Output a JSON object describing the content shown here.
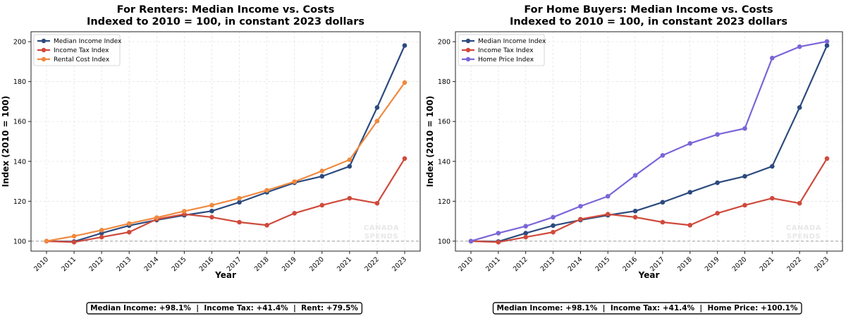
{
  "chart_data": [
    {
      "type": "line",
      "title": "For Renters: Median Income vs. Costs",
      "subtitle": "Indexed to 2010 = 100, in constant 2023 dollars",
      "xlabel": "Year",
      "ylabel": "Index (2010 = 100)",
      "ylim": [
        95,
        205
      ],
      "yticks": [
        100,
        120,
        140,
        160,
        180,
        200
      ],
      "grid": true,
      "legend_position": "top-left",
      "baseline": 100,
      "categories": [
        "2010",
        "2011",
        "2012",
        "2013",
        "2014",
        "2015",
        "2016",
        "2017",
        "2018",
        "2019",
        "2020",
        "2021",
        "2022",
        "2023"
      ],
      "series": [
        {
          "name": "Median Income Index",
          "color": "#2c4a7e",
          "values": [
            100,
            99.8,
            104,
            107.8,
            110.6,
            113,
            115.1,
            119.5,
            124.5,
            129.3,
            132.5,
            137.5,
            167,
            198.1
          ]
        },
        {
          "name": "Income Tax Index",
          "color": "#cf4a3c",
          "values": [
            100,
            99.5,
            102,
            104.5,
            111,
            113.5,
            112,
            109.5,
            108,
            114,
            118,
            121.5,
            119,
            141.4
          ]
        },
        {
          "name": "Rental Cost Index",
          "color": "#f0893f",
          "values": [
            100,
            102.5,
            105.5,
            108.8,
            111.8,
            115,
            118,
            121.5,
            125.5,
            129.8,
            135.2,
            140.8,
            160.2,
            179.5
          ]
        }
      ],
      "watermark": [
        "CANADA",
        "SPENDS"
      ],
      "summary": "Median Income: +98.1%  |  Income Tax: +41.4%  |  Rent: +79.5%"
    },
    {
      "type": "line",
      "title": "For Home Buyers: Median Income vs. Costs",
      "subtitle": "Indexed to 2010 = 100, in constant 2023 dollars",
      "xlabel": "Year",
      "ylabel": "Index (2010 = 100)",
      "ylim": [
        95,
        205
      ],
      "yticks": [
        100,
        120,
        140,
        160,
        180,
        200
      ],
      "grid": true,
      "legend_position": "top-left",
      "baseline": 100,
      "categories": [
        "2010",
        "2011",
        "2012",
        "2013",
        "2014",
        "2015",
        "2016",
        "2017",
        "2018",
        "2019",
        "2020",
        "2021",
        "2022",
        "2023"
      ],
      "series": [
        {
          "name": "Median Income Index",
          "color": "#2c4a7e",
          "values": [
            100,
            99.8,
            104,
            107.8,
            110.6,
            113,
            115.1,
            119.5,
            124.5,
            129.3,
            132.5,
            137.5,
            167,
            198.1
          ]
        },
        {
          "name": "Income Tax Index",
          "color": "#cf4a3c",
          "values": [
            100,
            99.5,
            102,
            104.5,
            111,
            113.5,
            112,
            109.5,
            108,
            114,
            118,
            121.5,
            119,
            141.4
          ]
        },
        {
          "name": "Home Price Index",
          "color": "#7b65d8",
          "values": [
            100,
            104,
            107.5,
            112,
            117.5,
            122.5,
            133,
            143,
            149,
            153.5,
            156.5,
            191.8,
            197.5,
            200.1
          ]
        }
      ],
      "watermark": [
        "CANADA",
        "SPENDS"
      ],
      "summary": "Median Income: +98.1%  |  Income Tax: +41.4%  |  Home Price: +100.1%"
    }
  ]
}
